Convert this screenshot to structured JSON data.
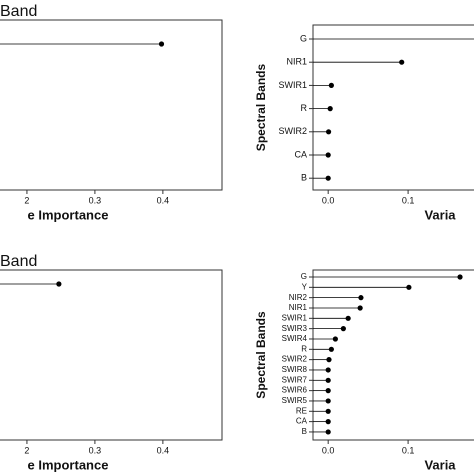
{
  "chart_data": [
    {
      "type": "lollipop",
      "title": "Band",
      "categories": [
        null
      ],
      "values": [
        0.398
      ],
      "xlim": [
        0,
        0.487
      ],
      "xticks": [
        {
          "value": 0.2,
          "label": "2"
        },
        0.3,
        0.4
      ],
      "x_label": "e Importance",
      "color": "#000000"
    },
    {
      "type": "lollipop",
      "y_label": "Spectral Bands",
      "categories": [
        "G",
        "NIR1",
        "SWIR1",
        "R",
        "SWIR2",
        "CA",
        "B"
      ],
      "values": [
        0.19,
        0.092,
        0.004,
        0.0025,
        0.0005,
        0,
        0
      ],
      "xlim": [
        -0.019,
        0.2
      ],
      "xticks": [
        {
          "value": 0,
          "label": "0.0"
        },
        0.1
      ],
      "x_label": "Varia",
      "color": "#000000"
    },
    {
      "type": "lollipop",
      "title": "Band",
      "categories": [
        null
      ],
      "values": [
        0.247
      ],
      "xlim": [
        0,
        0.487
      ],
      "xticks": [
        {
          "value": 0.2,
          "label": "2"
        },
        0.3,
        0.4
      ],
      "x_label": "e Importance",
      "color": "#000000"
    },
    {
      "type": "lollipop",
      "y_label": "Spectral Bands",
      "categories": [
        "G",
        "Y",
        "NIR2",
        "NIR1",
        "SWIR1",
        "SWIR3",
        "SWIR4",
        "R",
        "SWIR2",
        "SWIR8",
        "SWIR7",
        "SWIR6",
        "SWIR5",
        "RE",
        "CA",
        "B"
      ],
      "values": [
        0.165,
        0.101,
        0.041,
        0.04,
        0.025,
        0.019,
        0.009,
        0.004,
        0.001,
        0,
        0,
        0,
        0,
        0,
        0,
        0
      ],
      "xlim": [
        -0.019,
        0.2
      ],
      "xticks": [
        {
          "value": 0,
          "label": "0.0"
        },
        0.1
      ],
      "x_label": "Varia",
      "color": "#000000"
    }
  ]
}
